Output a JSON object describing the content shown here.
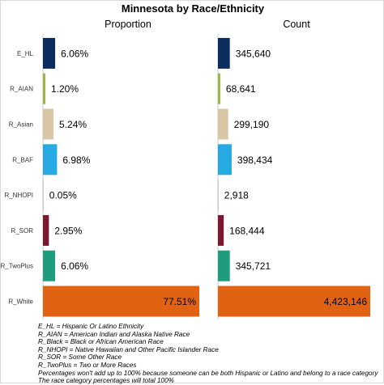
{
  "chart_data": {
    "type": "bar",
    "orientation": "horizontal",
    "title": "Minnesota by Race/Ethnicity",
    "categories": [
      "E_HL",
      "R_AIAN",
      "R_Asian",
      "R_BAF",
      "R_NHOPI",
      "R_SOR",
      "R_TwoPlus",
      "R_White"
    ],
    "colors": [
      "#0b2d5e",
      "#9bb448",
      "#d8c6a6",
      "#27a9e1",
      "#b8b8b8",
      "#7a1830",
      "#1f9c7d",
      "#e06212"
    ],
    "panels": [
      {
        "title": "Proportion",
        "values": [
          6.06,
          1.2,
          5.24,
          6.98,
          0.05,
          2.95,
          6.06,
          77.51
        ],
        "labels": [
          "6.06%",
          "1.20%",
          "5.24%",
          "6.98%",
          "0.05%",
          "2.95%",
          "6.06%",
          "77.51%"
        ],
        "max": 77.51
      },
      {
        "title": "Count",
        "values": [
          345640,
          68641,
          299190,
          398434,
          2918,
          168444,
          345721,
          4423146
        ],
        "labels": [
          "345,640",
          "68,641",
          "299,190",
          "398,434",
          "2,918",
          "168,444",
          "345,721",
          "4,423,146"
        ],
        "max": 4423146
      }
    ],
    "notes": [
      "E_HL = Hispanic Or Latino Ethnicity",
      "R_AIAN = American Indian and Alaska Native Race",
      "R_Black = Black or African American Race",
      "R_NHOPI = Native Hawaiian and Other Pacific Islander Race",
      "R_SOR = Some Other Race",
      "R_TwoPlus = Two or More Races",
      "Percentages won't add up to 100% because someone can be both Hispanic or Latino and belong to a race category",
      "The race category percentages will total 100%"
    ]
  }
}
